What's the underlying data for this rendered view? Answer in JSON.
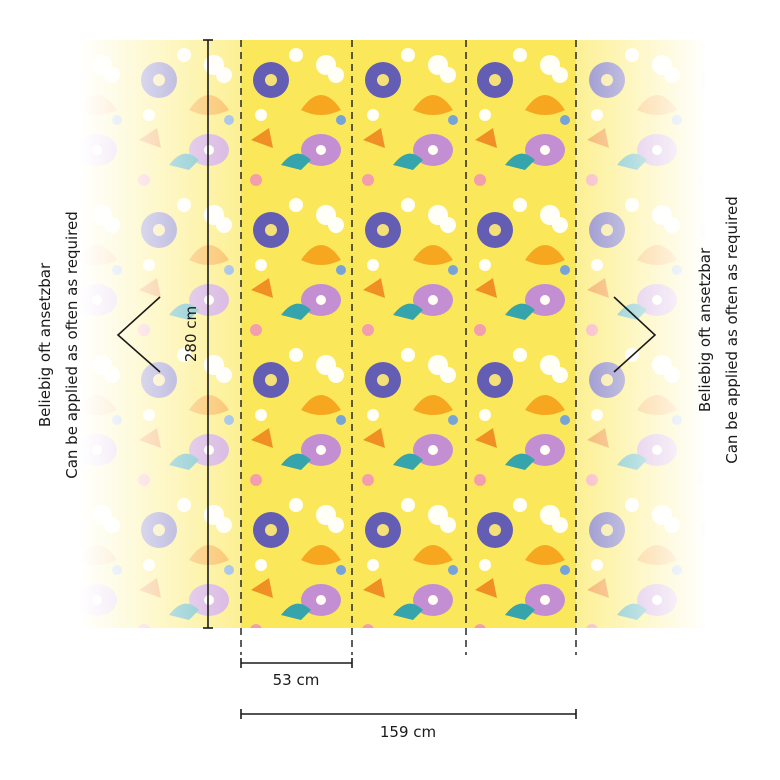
{
  "dimensions": {
    "height": "280 cm",
    "strip_width": "53 cm",
    "total_width": "159 cm"
  },
  "left_note": {
    "line1": "Beliebig oft ansetzbar",
    "line2": "Can be applied as often as required"
  },
  "right_note": {
    "line1": "Beliebig oft ansetzbar",
    "line2": "Can be applied as often as required"
  }
}
